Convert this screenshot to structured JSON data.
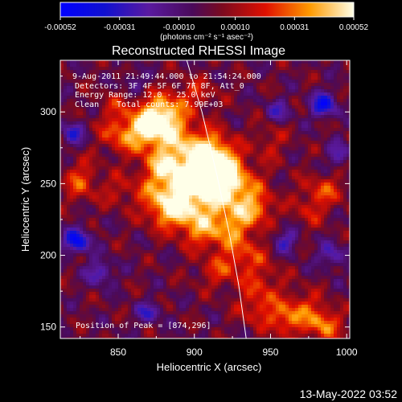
{
  "chart_data": {
    "type": "heatmap",
    "title": "Reconstructed RHESSI Image",
    "xlabel": "Heliocentric X (arcsec)",
    "ylabel": "Heliocentric Y (arcsec)",
    "xlim": [
      812,
      1002
    ],
    "ylim": [
      142,
      336
    ],
    "x_ticks": [
      850,
      900,
      950,
      1000
    ],
    "y_ticks": [
      150,
      200,
      250,
      300
    ],
    "colorbar": {
      "range": [
        -0.00052,
        0.00052
      ],
      "ticks": [
        -0.00052,
        -0.00031,
        -0.0001,
        0.0001,
        0.00031,
        0.00052
      ],
      "tick_labels": [
        "-0.00052",
        "-0.00031",
        "-0.00010",
        "0.00010",
        "0.00031",
        "0.00052"
      ],
      "units": "(photons cm⁻² s⁻¹ asec⁻²)"
    },
    "annotations": {
      "time_range": "9-Aug-2011 21:49:44.000 to 21:54:24.000",
      "detectors": "Detectors: 3F 4F 5F 6F 7F 8F, Att_0",
      "energy_range": "Energy Range: 12.0 - 25.0 keV",
      "method": "Clean",
      "total_counts": "Total counts: 7.99E+03",
      "peak_position": "Position of Peak = [874,296]"
    },
    "peak": [
      874,
      296
    ],
    "limb_curve": [
      [
        895,
        336
      ],
      [
        905,
        300
      ],
      [
        915,
        255
      ],
      [
        923,
        215
      ],
      [
        929,
        180
      ],
      [
        934,
        142
      ]
    ],
    "emission_sources": [
      {
        "x": 878,
        "y": 297,
        "sx": 10,
        "sy": 10,
        "amp": 0.00052
      },
      {
        "x": 865,
        "y": 285,
        "sx": 12,
        "sy": 9,
        "amp": 0.00036
      },
      {
        "x": 895,
        "y": 275,
        "sx": 14,
        "sy": 12,
        "amp": 0.00034
      },
      {
        "x": 912,
        "y": 268,
        "sx": 10,
        "sy": 10,
        "amp": 0.00036
      },
      {
        "x": 880,
        "y": 262,
        "sx": 10,
        "sy": 8,
        "amp": 0.0003
      },
      {
        "x": 918,
        "y": 255,
        "sx": 10,
        "sy": 12,
        "amp": 0.0004
      },
      {
        "x": 898,
        "y": 250,
        "sx": 10,
        "sy": 10,
        "amp": 0.00038
      },
      {
        "x": 878,
        "y": 243,
        "sx": 11,
        "sy": 10,
        "amp": 0.00032
      },
      {
        "x": 930,
        "y": 245,
        "sx": 12,
        "sy": 12,
        "amp": 0.00028
      },
      {
        "x": 900,
        "y": 232,
        "sx": 12,
        "sy": 10,
        "amp": 0.0003
      },
      {
        "x": 883,
        "y": 228,
        "sx": 10,
        "sy": 8,
        "amp": 0.00024
      },
      {
        "x": 925,
        "y": 222,
        "sx": 10,
        "sy": 10,
        "amp": 0.00028
      },
      {
        "x": 942,
        "y": 232,
        "sx": 8,
        "sy": 8,
        "amp": 0.00022
      },
      {
        "x": 905,
        "y": 215,
        "sx": 10,
        "sy": 8,
        "amp": 0.00024
      },
      {
        "x": 932,
        "y": 200,
        "sx": 12,
        "sy": 10,
        "amp": 0.00022
      },
      {
        "x": 915,
        "y": 188,
        "sx": 10,
        "sy": 8,
        "amp": 0.00016
      },
      {
        "x": 945,
        "y": 178,
        "sx": 10,
        "sy": 10,
        "amp": 0.00018
      },
      {
        "x": 940,
        "y": 162,
        "sx": 8,
        "sy": 8,
        "amp": 0.00018
      },
      {
        "x": 825,
        "y": 252,
        "sx": 8,
        "sy": 10,
        "amp": 0.00024
      },
      {
        "x": 850,
        "y": 245,
        "sx": 8,
        "sy": 8,
        "amp": 0.00014
      },
      {
        "x": 985,
        "y": 245,
        "sx": 10,
        "sy": 8,
        "amp": 0.00022
      },
      {
        "x": 975,
        "y": 230,
        "sx": 8,
        "sy": 8,
        "amp": 0.00014
      },
      {
        "x": 950,
        "y": 280,
        "sx": 8,
        "sy": 10,
        "amp": 0.00014
      },
      {
        "x": 960,
        "y": 155,
        "sx": 8,
        "sy": 8,
        "amp": 0.0003
      },
      {
        "x": 985,
        "y": 152,
        "sx": 8,
        "sy": 8,
        "amp": 0.00034
      },
      {
        "x": 972,
        "y": 165,
        "sx": 8,
        "sy": 8,
        "amp": 0.00018
      },
      {
        "x": 850,
        "y": 305,
        "sx": 10,
        "sy": 8,
        "amp": 0.00012
      },
      {
        "x": 900,
        "y": 312,
        "sx": 10,
        "sy": 8,
        "amp": 0.00018
      },
      {
        "x": 848,
        "y": 285,
        "sx": 8,
        "sy": 10,
        "amp": 0.00014
      }
    ],
    "negative_sources": [
      {
        "x": 823,
        "y": 210,
        "sx": 6,
        "sy": 6,
        "amp": -0.00046
      },
      {
        "x": 985,
        "y": 305,
        "sx": 6,
        "sy": 6,
        "amp": -0.00042
      },
      {
        "x": 820,
        "y": 285,
        "sx": 5,
        "sy": 6,
        "amp": -0.0003
      },
      {
        "x": 838,
        "y": 188,
        "sx": 6,
        "sy": 6,
        "amp": -0.00028
      },
      {
        "x": 960,
        "y": 210,
        "sx": 6,
        "sy": 6,
        "amp": -0.00026
      },
      {
        "x": 990,
        "y": 200,
        "sx": 6,
        "sy": 6,
        "amp": -0.00026
      },
      {
        "x": 870,
        "y": 160,
        "sx": 6,
        "sy": 5,
        "amp": -0.00026
      },
      {
        "x": 995,
        "y": 270,
        "sx": 5,
        "sy": 6,
        "amp": -0.00024
      },
      {
        "x": 955,
        "y": 300,
        "sx": 6,
        "sy": 6,
        "amp": -0.00022
      },
      {
        "x": 860,
        "y": 320,
        "sx": 5,
        "sy": 5,
        "amp": -0.0002
      }
    ]
  },
  "footer": {
    "timestamp": "13-May-2022 03:52"
  },
  "colors": {
    "background": "#000000",
    "axes": "#ffffff",
    "limb": "#ffffff"
  }
}
